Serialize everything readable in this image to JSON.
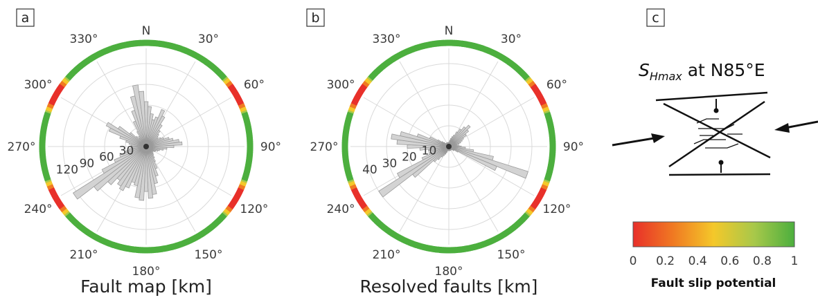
{
  "panels": [
    {
      "id": "a",
      "letter": "a",
      "caption": "Fault map [km]",
      "north_label": "N",
      "angle_labels": [
        "30°",
        "60°",
        "90°",
        "120°",
        "150°",
        "180°",
        "210°",
        "240°",
        "270°",
        "300°",
        "330°"
      ],
      "radial_labels": [
        "30",
        "60",
        "90",
        "120"
      ],
      "r_max": 120,
      "bins": [
        {
          "az": 0,
          "len": 65
        },
        {
          "az": 5,
          "len": 58
        },
        {
          "az": 10,
          "len": 48
        },
        {
          "az": 15,
          "len": 40
        },
        {
          "az": 20,
          "len": 45
        },
        {
          "az": 25,
          "len": 58
        },
        {
          "az": 30,
          "len": 50
        },
        {
          "az": 35,
          "len": 38
        },
        {
          "az": 40,
          "len": 30
        },
        {
          "az": 45,
          "len": 25
        },
        {
          "az": 50,
          "len": 22
        },
        {
          "az": 55,
          "len": 20
        },
        {
          "az": 60,
          "len": 24
        },
        {
          "az": 65,
          "len": 28
        },
        {
          "az": 70,
          "len": 35
        },
        {
          "az": 75,
          "len": 40
        },
        {
          "az": 80,
          "len": 48
        },
        {
          "az": 85,
          "len": 52
        },
        {
          "az": 90,
          "len": 40
        },
        {
          "az": 95,
          "len": 30
        },
        {
          "az": 100,
          "len": 25
        },
        {
          "az": 105,
          "len": 20
        },
        {
          "az": 110,
          "len": 18
        },
        {
          "az": 115,
          "len": 15
        },
        {
          "az": 120,
          "len": 14
        },
        {
          "az": 125,
          "len": 12
        },
        {
          "az": 130,
          "len": 12
        },
        {
          "az": 135,
          "len": 14
        },
        {
          "az": 140,
          "len": 16
        },
        {
          "az": 145,
          "len": 20
        },
        {
          "az": 150,
          "len": 25
        },
        {
          "az": 155,
          "len": 35
        },
        {
          "az": 160,
          "len": 45
        },
        {
          "az": 165,
          "len": 55
        },
        {
          "az": 170,
          "len": 70
        },
        {
          "az": 175,
          "len": 75
        },
        {
          "az": 180,
          "len": 65
        },
        {
          "az": 185,
          "len": 78
        },
        {
          "az": 190,
          "len": 75
        },
        {
          "az": 195,
          "len": 58
        },
        {
          "az": 200,
          "len": 55
        },
        {
          "az": 205,
          "len": 65
        },
        {
          "az": 210,
          "len": 72
        },
        {
          "az": 215,
          "len": 68
        },
        {
          "az": 220,
          "len": 62
        },
        {
          "az": 225,
          "len": 75
        },
        {
          "az": 230,
          "len": 95
        },
        {
          "az": 235,
          "len": 125
        },
        {
          "az": 240,
          "len": 72
        },
        {
          "az": 245,
          "len": 50
        },
        {
          "az": 250,
          "len": 40
        },
        {
          "az": 255,
          "len": 30
        },
        {
          "az": 260,
          "len": 25
        },
        {
          "az": 265,
          "len": 22
        },
        {
          "az": 270,
          "len": 20
        },
        {
          "az": 275,
          "len": 22
        },
        {
          "az": 280,
          "len": 25
        },
        {
          "az": 285,
          "len": 30
        },
        {
          "az": 290,
          "len": 40
        },
        {
          "az": 295,
          "len": 58
        },
        {
          "az": 300,
          "len": 65
        },
        {
          "az": 305,
          "len": 48
        },
        {
          "az": 310,
          "len": 30
        },
        {
          "az": 315,
          "len": 20
        },
        {
          "az": 320,
          "len": 15
        },
        {
          "az": 325,
          "len": 18
        },
        {
          "az": 330,
          "len": 25
        },
        {
          "az": 335,
          "len": 40
        },
        {
          "az": 340,
          "len": 55
        },
        {
          "az": 345,
          "len": 75
        },
        {
          "az": 350,
          "len": 90
        },
        {
          "az": 355,
          "len": 80
        }
      ]
    },
    {
      "id": "b",
      "letter": "b",
      "caption": "Resolved faults [km]",
      "north_label": "N",
      "angle_labels": [
        "30°",
        "60°",
        "90°",
        "120°",
        "150°",
        "180°",
        "210°",
        "240°",
        "270°",
        "300°",
        "330°"
      ],
      "radial_labels": [
        "10",
        "20",
        "30",
        "40"
      ],
      "r_max": 40,
      "bins": [
        {
          "az": 0,
          "len": 2
        },
        {
          "az": 5,
          "len": 2
        },
        {
          "az": 10,
          "len": 3
        },
        {
          "az": 15,
          "len": 4
        },
        {
          "az": 20,
          "len": 5
        },
        {
          "az": 25,
          "len": 6
        },
        {
          "az": 30,
          "len": 8
        },
        {
          "az": 35,
          "len": 10
        },
        {
          "az": 40,
          "len": 12
        },
        {
          "az": 45,
          "len": 14
        },
        {
          "az": 50,
          "len": 12
        },
        {
          "az": 55,
          "len": 10
        },
        {
          "az": 60,
          "len": 8
        },
        {
          "az": 65,
          "len": 7
        },
        {
          "az": 70,
          "len": 6
        },
        {
          "az": 75,
          "len": 5
        },
        {
          "az": 80,
          "len": 4
        },
        {
          "az": 85,
          "len": 5
        },
        {
          "az": 90,
          "len": 6
        },
        {
          "az": 95,
          "len": 8
        },
        {
          "az": 100,
          "len": 12
        },
        {
          "az": 105,
          "len": 22
        },
        {
          "az": 110,
          "len": 40
        },
        {
          "az": 115,
          "len": 25
        },
        {
          "az": 120,
          "len": 5
        },
        {
          "az": 125,
          "len": 3
        },
        {
          "az": 130,
          "len": 3
        },
        {
          "az": 135,
          "len": 2
        },
        {
          "az": 140,
          "len": 2
        },
        {
          "az": 145,
          "len": 2
        },
        {
          "az": 150,
          "len": 2
        },
        {
          "az": 155,
          "len": 2
        },
        {
          "az": 160,
          "len": 2
        },
        {
          "az": 165,
          "len": 2
        },
        {
          "az": 170,
          "len": 2
        },
        {
          "az": 175,
          "len": 2
        },
        {
          "az": 180,
          "len": 2
        },
        {
          "az": 185,
          "len": 2
        },
        {
          "az": 190,
          "len": 2
        },
        {
          "az": 195,
          "len": 2
        },
        {
          "az": 200,
          "len": 3
        },
        {
          "az": 205,
          "len": 4
        },
        {
          "az": 210,
          "len": 5
        },
        {
          "az": 215,
          "len": 6
        },
        {
          "az": 220,
          "len": 8
        },
        {
          "az": 225,
          "len": 10
        },
        {
          "az": 230,
          "len": 22
        },
        {
          "az": 235,
          "len": 40
        },
        {
          "az": 240,
          "len": 28
        },
        {
          "az": 245,
          "len": 14
        },
        {
          "az": 250,
          "len": 10
        },
        {
          "az": 255,
          "len": 8
        },
        {
          "az": 260,
          "len": 10
        },
        {
          "az": 265,
          "len": 14
        },
        {
          "az": 270,
          "len": 20
        },
        {
          "az": 275,
          "len": 25
        },
        {
          "az": 280,
          "len": 28
        },
        {
          "az": 285,
          "len": 24
        },
        {
          "az": 290,
          "len": 16
        },
        {
          "az": 295,
          "len": 10
        },
        {
          "az": 300,
          "len": 6
        },
        {
          "az": 305,
          "len": 4
        },
        {
          "az": 310,
          "len": 3
        },
        {
          "az": 315,
          "len": 2
        },
        {
          "az": 320,
          "len": 2
        },
        {
          "az": 325,
          "len": 2
        },
        {
          "az": 330,
          "len": 2
        },
        {
          "az": 335,
          "len": 2
        },
        {
          "az": 340,
          "len": 2
        },
        {
          "az": 345,
          "len": 2
        },
        {
          "az": 350,
          "len": 2
        },
        {
          "az": 355,
          "len": 2
        }
      ]
    }
  ],
  "slip_potential": {
    "red_zones_deg": [
      60,
      120,
      240,
      300
    ],
    "stops": [
      {
        "offset": 0,
        "color": "#e8302a"
      },
      {
        "offset": 0.25,
        "color": "#f07a22"
      },
      {
        "offset": 0.5,
        "color": "#f4c82a"
      },
      {
        "offset": 0.75,
        "color": "#a8c84a"
      },
      {
        "offset": 1,
        "color": "#4caf3e"
      }
    ]
  },
  "panel_c": {
    "letter": "c",
    "shmax_s": "S",
    "shmax_sub": "Hmax",
    "shmax_rest": " at N85°E"
  },
  "colorbar": {
    "ticks": [
      "0",
      "0.2",
      "0.4",
      "0.6",
      "0.8",
      "1"
    ],
    "title": "Fault slip potential"
  },
  "colors": {
    "bar_fill": "#d3d3d3",
    "bar_stroke": "#9a9a9a",
    "grid": "#d9d9d9",
    "green": "#4caf3e",
    "red": "#e8302a"
  }
}
